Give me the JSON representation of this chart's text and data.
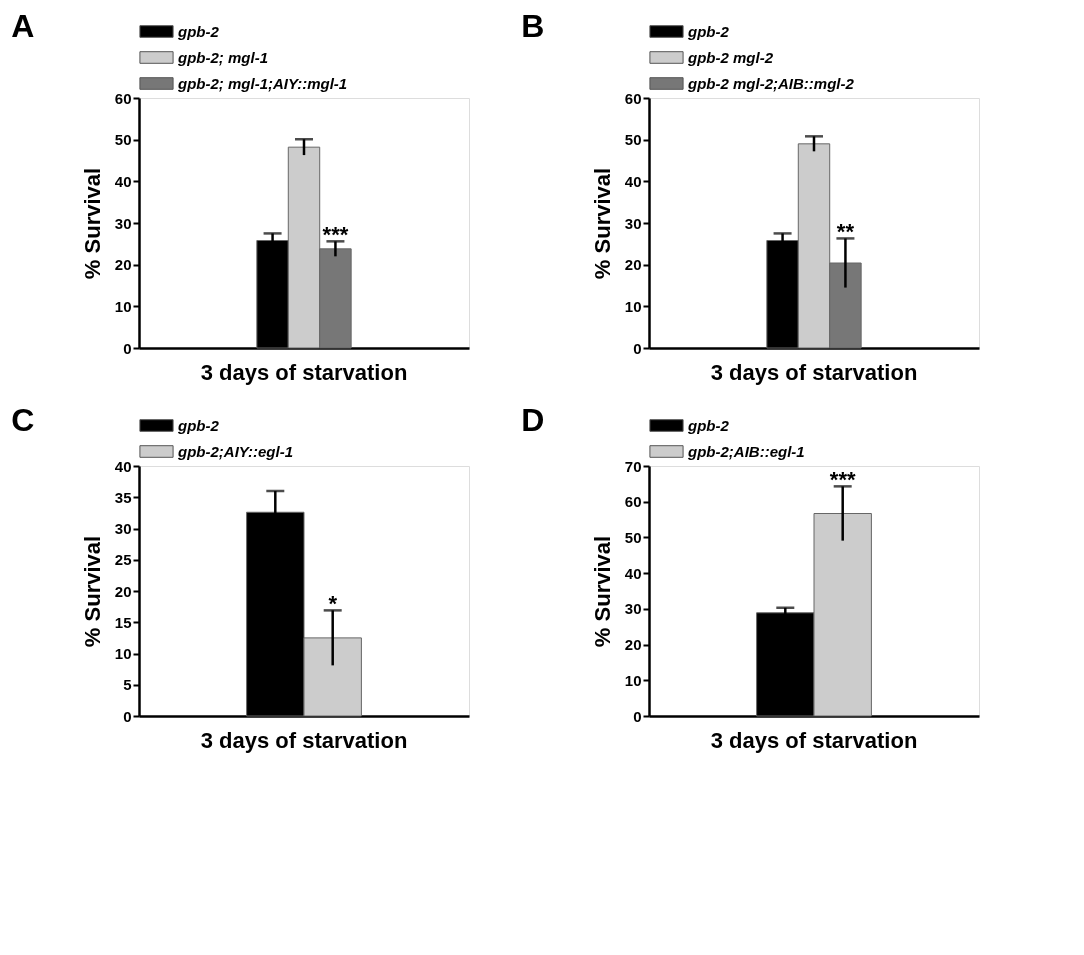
{
  "chart_data": [
    {
      "type": "bar",
      "title": "A",
      "ylabel": "% Survival",
      "categories": [
        "3 days of starvation"
      ],
      "ylim": [
        0,
        60
      ],
      "yticks": [
        0,
        10,
        20,
        30,
        40,
        50,
        60
      ],
      "legend": "top",
      "grid": false,
      "series": [
        {
          "name": "gpb-2",
          "color": "#000000",
          "values": [
            25.8
          ],
          "errors": [
            1.7
          ]
        },
        {
          "name": "gpb-2; mgl-1",
          "color": "#cccccc",
          "values": [
            48.2
          ],
          "errors": [
            1.9
          ]
        },
        {
          "name": "gpb-2; mgl-1;AIY::mgl-1",
          "color": "#777777",
          "values": [
            23.8
          ],
          "errors": [
            1.8
          ],
          "value_labels": [
            "***"
          ]
        }
      ]
    },
    {
      "type": "bar",
      "title": "B",
      "ylabel": "% Survival",
      "categories": [
        "3 days of starvation"
      ],
      "ylim": [
        0,
        60
      ],
      "yticks": [
        0,
        10,
        20,
        30,
        40,
        50,
        60
      ],
      "legend": "top",
      "grid": false,
      "series": [
        {
          "name": "gpb-2",
          "color": "#000000",
          "values": [
            25.8
          ],
          "errors": [
            1.7
          ]
        },
        {
          "name": "gpb-2 mgl-2",
          "color": "#cccccc",
          "values": [
            49.0
          ],
          "errors": [
            1.8
          ]
        },
        {
          "name": "gpb-2 mgl-2;AIB::mgl-2",
          "color": "#777777",
          "values": [
            20.4
          ],
          "errors": [
            5.9
          ],
          "value_labels": [
            "**"
          ]
        }
      ]
    },
    {
      "type": "bar",
      "title": "C",
      "ylabel": "% Survival",
      "categories": [
        "3 days of starvation"
      ],
      "ylim": [
        0,
        40
      ],
      "yticks": [
        0,
        5,
        10,
        15,
        20,
        25,
        30,
        35,
        40
      ],
      "legend": "top",
      "grid": false,
      "series": [
        {
          "name": "gpb-2",
          "color": "#000000",
          "values": [
            32.6
          ],
          "errors": [
            3.4
          ]
        },
        {
          "name": "gpb-2;AIY::egl-1",
          "color": "#cccccc",
          "values": [
            12.5
          ],
          "errors": [
            4.4
          ],
          "value_labels": [
            "*"
          ]
        }
      ]
    },
    {
      "type": "bar",
      "title": "D",
      "ylabel": "% Survival",
      "categories": [
        "3 days of starvation"
      ],
      "ylim": [
        0,
        70
      ],
      "yticks": [
        0,
        10,
        20,
        30,
        40,
        50,
        60,
        70
      ],
      "legend": "top",
      "grid": false,
      "series": [
        {
          "name": "gpb-2",
          "color": "#000000",
          "values": [
            28.9
          ],
          "errors": [
            1.4
          ]
        },
        {
          "name": "gpb-2;AIB::egl-1",
          "color": "#cccccc",
          "values": [
            56.7
          ],
          "errors": [
            7.6
          ],
          "value_labels": [
            "***"
          ]
        }
      ]
    }
  ]
}
